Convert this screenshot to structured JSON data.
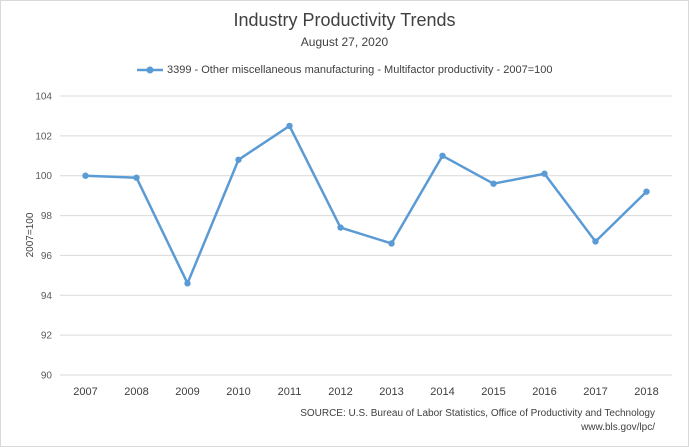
{
  "chart_data": {
    "type": "line",
    "title": "Industry Productivity Trends",
    "subtitle": "August 27, 2020",
    "ylabel": "2007=100",
    "xlabel": "",
    "categories": [
      "2007",
      "2008",
      "2009",
      "2010",
      "2011",
      "2012",
      "2013",
      "2014",
      "2015",
      "2016",
      "2017",
      "2018"
    ],
    "series": [
      {
        "name": "3399 - Other miscellaneous manufacturing - Multifactor productivity - 2007=100",
        "values": [
          100.0,
          99.9,
          94.6,
          100.8,
          102.5,
          97.4,
          96.6,
          101.0,
          99.6,
          100.1,
          96.7,
          99.2
        ],
        "color": "#5b9bd5"
      }
    ],
    "ylim": [
      90,
      104
    ],
    "yticks": [
      90,
      92,
      94,
      96,
      98,
      100,
      102,
      104
    ],
    "grid": true,
    "legend_position": "top",
    "source_line1": "SOURCE: U.S. Bureau of Labor Statistics, Office of Productivity and Technology",
    "source_line2": "www.bls.gov/lpc/"
  }
}
